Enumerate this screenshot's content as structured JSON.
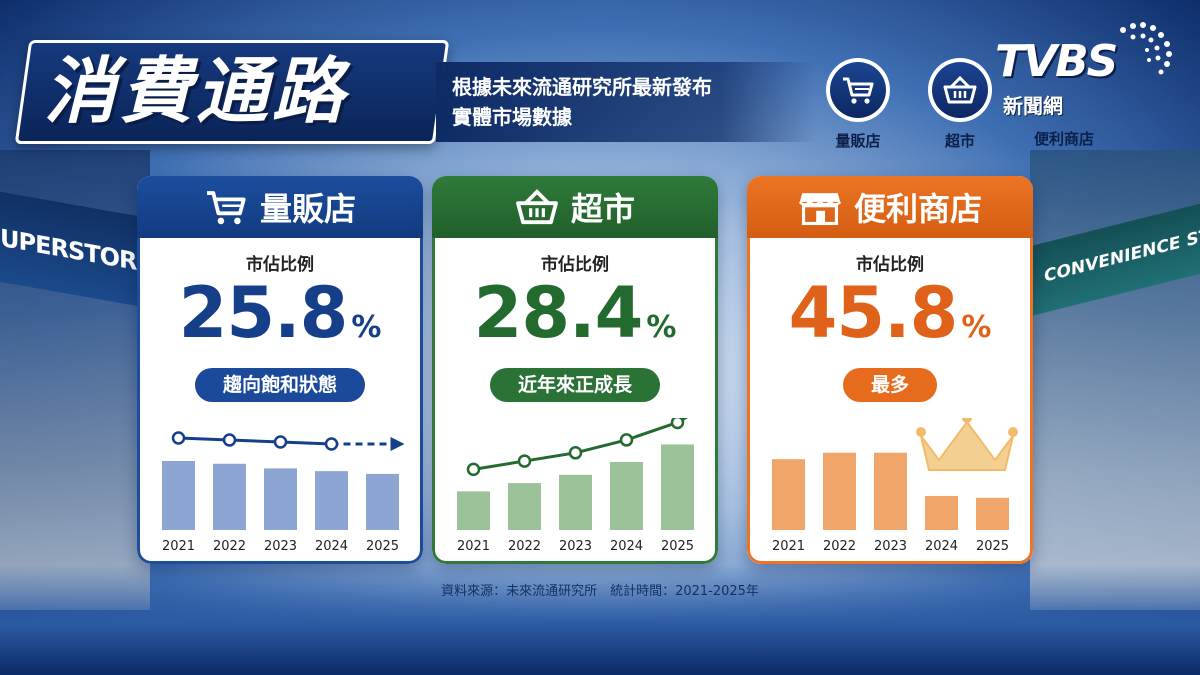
{
  "header": {
    "title": "消費通路",
    "subtitle_line1": "根據未來流通研究所最新發布",
    "subtitle_line2": "實體市場數據"
  },
  "legend": [
    {
      "label": "量販店",
      "icon": "cart-icon"
    },
    {
      "label": "超市",
      "icon": "basket-icon"
    },
    {
      "label": "便利商店",
      "icon": "store-icon"
    }
  ],
  "logo": {
    "main": "TVBS",
    "sub": "新聞網"
  },
  "background": {
    "left_sign": "UPERSTORE",
    "right_sign": "CONVENIENCE STORE"
  },
  "colors": {
    "blue": "#1c4e9e",
    "green": "#2f7a3a",
    "orange": "#ec7424"
  },
  "cards": [
    {
      "title": "量販店",
      "icon": "cart-icon",
      "metric_label": "市佔比例",
      "value": "25.8",
      "unit": "%",
      "tag": "趨向飽和狀態"
    },
    {
      "title": "超市",
      "icon": "basket-icon",
      "metric_label": "市佔比例",
      "value": "28.4",
      "unit": "%",
      "tag": "近年來正成長"
    },
    {
      "title": "便利商店",
      "icon": "store-icon",
      "metric_label": "市佔比例",
      "value": "45.8",
      "unit": "%",
      "tag": "最多"
    }
  ],
  "chart_data": [
    {
      "type": "bar",
      "categories": [
        "2021",
        "2022",
        "2023",
        "2024",
        "2025"
      ],
      "values": [
        75,
        72,
        67,
        64,
        61
      ],
      "trend": "flat-down",
      "ylim": [
        0,
        100
      ],
      "grid": false
    },
    {
      "type": "bar",
      "categories": [
        "2021",
        "2022",
        "2023",
        "2024",
        "2025"
      ],
      "values": [
        42,
        51,
        60,
        74,
        93
      ],
      "trend": "up",
      "ylim": [
        0,
        100
      ],
      "grid": false
    },
    {
      "type": "bar",
      "categories": [
        "2021",
        "2022",
        "2023",
        "2024",
        "2025"
      ],
      "values": [
        77,
        84,
        84,
        37,
        35
      ],
      "trend": "crown",
      "ylim": [
        0,
        100
      ],
      "grid": false
    }
  ],
  "footer": {
    "source": "資料來源：未來流通研究所　統計時間：2021-2025年"
  }
}
